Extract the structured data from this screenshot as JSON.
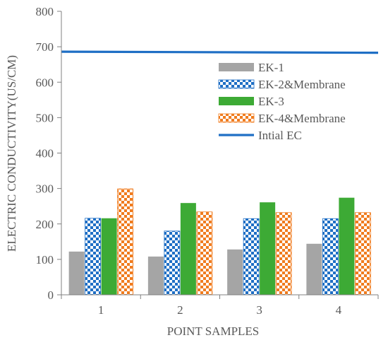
{
  "chart_data": {
    "type": "bar",
    "title": "",
    "xlabel": "POINT SAMPLES",
    "ylabel": "ELECTRIC CONDUCTIVITY(US/CM)",
    "ylim": [
      0,
      800
    ],
    "yticks": [
      0,
      100,
      200,
      300,
      400,
      500,
      600,
      700,
      800
    ],
    "categories": [
      "1",
      "2",
      "3",
      "4"
    ],
    "series": [
      {
        "name": "EK-1",
        "values": [
          122,
          108,
          128,
          144
        ],
        "color": "#a5a5a5",
        "pattern": "solid"
      },
      {
        "name": "EK-2&Membrane",
        "values": [
          216,
          180,
          215,
          215
        ],
        "color": "#1f6fc5",
        "pattern": "checker"
      },
      {
        "name": "EK-3",
        "values": [
          216,
          259,
          261,
          274
        ],
        "color": "#3daa35",
        "pattern": "solid"
      },
      {
        "name": "EK-4&Membrane",
        "values": [
          299,
          234,
          232,
          232
        ],
        "color": "#f07c1f",
        "pattern": "checker"
      }
    ],
    "reference_line": {
      "name": "Intial EC",
      "values": [
        686,
        683
      ],
      "color": "#1f6fc5"
    },
    "grid": false,
    "legend_position": "right, upper-middle"
  }
}
